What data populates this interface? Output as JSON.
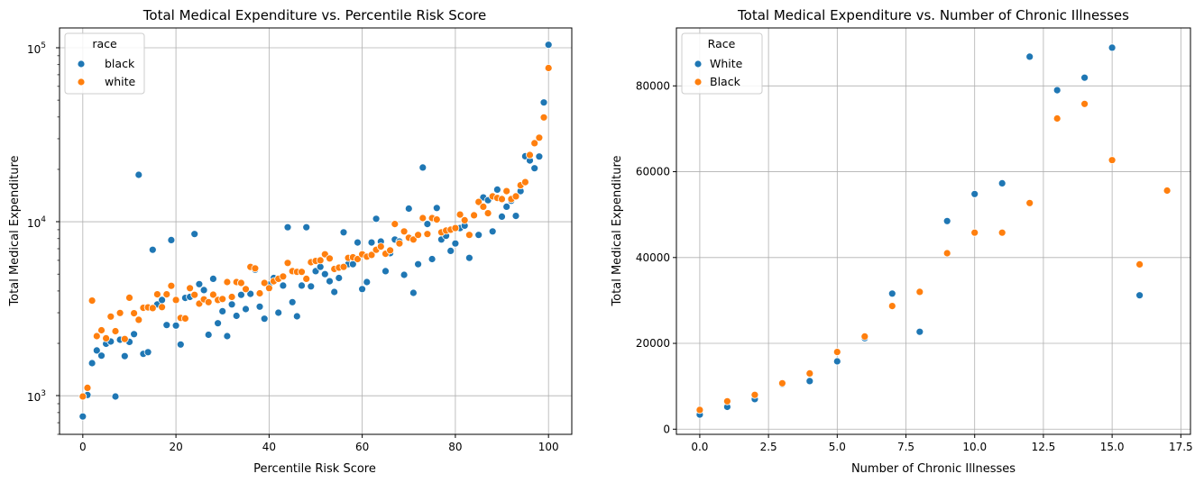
{
  "colors": {
    "blue": "#1f77b4",
    "orange": "#ff7f0e",
    "grid": "#b0b0b0"
  },
  "chart_data": [
    {
      "type": "scatter",
      "title": "Total Medical Expenditure vs. Percentile Risk Score",
      "xlabel": "Percentile Risk Score",
      "ylabel": "Total Medical Expenditure",
      "xlim": [
        -5,
        105
      ],
      "ylim": [
        600,
        130000
      ],
      "yscale": "log",
      "xticks": [
        0,
        20,
        40,
        60,
        80,
        100
      ],
      "xtick_labels": [
        "0",
        "20",
        "40",
        "60",
        "80",
        "100"
      ],
      "ytick_labels": [
        "10",
        "10",
        "10"
      ],
      "ytick_exponents": [
        "3",
        "4",
        "5"
      ],
      "grid": true,
      "legend": {
        "title": "race",
        "position": "top-left"
      },
      "series": [
        {
          "name": "black",
          "color": "#1f77b4",
          "points": [
            [
              0,
              760
            ],
            [
              1,
              1010
            ],
            [
              2,
              1540
            ],
            [
              3,
              1820
            ],
            [
              4,
              1700
            ],
            [
              5,
              1990
            ],
            [
              6,
              2050
            ],
            [
              7,
              990
            ],
            [
              8,
              2100
            ],
            [
              9,
              1690
            ],
            [
              10,
              2040
            ],
            [
              11,
              2260
            ],
            [
              12,
              18600
            ],
            [
              13,
              1740
            ],
            [
              14,
              1780
            ],
            [
              15,
              6900
            ],
            [
              16,
              3350
            ],
            [
              17,
              3550
            ],
            [
              18,
              2550
            ],
            [
              19,
              7850
            ],
            [
              20,
              2530
            ],
            [
              21,
              1970
            ],
            [
              22,
              3650
            ],
            [
              23,
              3700
            ],
            [
              24,
              8500
            ],
            [
              25,
              4380
            ],
            [
              26,
              4050
            ],
            [
              27,
              2240
            ],
            [
              28,
              4700
            ],
            [
              29,
              2610
            ],
            [
              30,
              3060
            ],
            [
              31,
              2200
            ],
            [
              32,
              3350
            ],
            [
              33,
              2880
            ],
            [
              34,
              3800
            ],
            [
              35,
              3150
            ],
            [
              36,
              3850
            ],
            [
              37,
              5300
            ],
            [
              38,
              3250
            ],
            [
              39,
              2770
            ],
            [
              40,
              4350
            ],
            [
              41,
              4750
            ],
            [
              42,
              3000
            ],
            [
              43,
              4300
            ],
            [
              44,
              9300
            ],
            [
              45,
              3450
            ],
            [
              46,
              2860
            ],
            [
              47,
              4300
            ],
            [
              48,
              9300
            ],
            [
              49,
              4250
            ],
            [
              50,
              5200
            ],
            [
              51,
              5500
            ],
            [
              52,
              5000
            ],
            [
              53,
              4550
            ],
            [
              54,
              3950
            ],
            [
              55,
              4750
            ],
            [
              56,
              8700
            ],
            [
              57,
              5700
            ],
            [
              58,
              5700
            ],
            [
              59,
              7600
            ],
            [
              60,
              4100
            ],
            [
              61,
              4500
            ],
            [
              62,
              7600
            ],
            [
              63,
              10400
            ],
            [
              64,
              7700
            ],
            [
              65,
              5200
            ],
            [
              66,
              6600
            ],
            [
              67,
              7900
            ],
            [
              68,
              7700
            ],
            [
              69,
              4950
            ],
            [
              70,
              11900
            ],
            [
              71,
              3900
            ],
            [
              72,
              5700
            ],
            [
              73,
              20500
            ],
            [
              74,
              9700
            ],
            [
              75,
              6100
            ],
            [
              76,
              12000
            ],
            [
              77,
              7900
            ],
            [
              78,
              8300
            ],
            [
              79,
              6800
            ],
            [
              80,
              7500
            ],
            [
              81,
              9200
            ],
            [
              82,
              9500
            ],
            [
              83,
              6200
            ],
            [
              84,
              10900
            ],
            [
              85,
              8400
            ],
            [
              86,
              13800
            ],
            [
              87,
              13300
            ],
            [
              88,
              8800
            ],
            [
              89,
              15300
            ],
            [
              90,
              10700
            ],
            [
              91,
              12200
            ],
            [
              92,
              13200
            ],
            [
              93,
              10800
            ],
            [
              94,
              15000
            ],
            [
              95,
              23800
            ],
            [
              96,
              22500
            ],
            [
              97,
              20300
            ],
            [
              98,
              23700
            ],
            [
              99,
              48500
            ],
            [
              100,
              104000
            ]
          ]
        },
        {
          "name": "white",
          "color": "#ff7f0e",
          "points": [
            [
              0,
              990
            ],
            [
              1,
              1110
            ],
            [
              2,
              3520
            ],
            [
              3,
              2200
            ],
            [
              4,
              2380
            ],
            [
              5,
              2140
            ],
            [
              6,
              2850
            ],
            [
              7,
              2350
            ],
            [
              8,
              2990
            ],
            [
              9,
              2120
            ],
            [
              10,
              3660
            ],
            [
              11,
              2980
            ],
            [
              12,
              2730
            ],
            [
              13,
              3200
            ],
            [
              14,
              3220
            ],
            [
              15,
              3190
            ],
            [
              16,
              3830
            ],
            [
              17,
              3230
            ],
            [
              18,
              3830
            ],
            [
              19,
              4280
            ],
            [
              20,
              3550
            ],
            [
              21,
              2800
            ],
            [
              22,
              2780
            ],
            [
              23,
              4150
            ],
            [
              24,
              3800
            ],
            [
              25,
              3380
            ],
            [
              26,
              3580
            ],
            [
              27,
              3450
            ],
            [
              28,
              3810
            ],
            [
              29,
              3550
            ],
            [
              30,
              3600
            ],
            [
              31,
              4500
            ],
            [
              32,
              3700
            ],
            [
              33,
              4500
            ],
            [
              34,
              4450
            ],
            [
              35,
              4100
            ],
            [
              36,
              5500
            ],
            [
              37,
              5400
            ],
            [
              38,
              3880
            ],
            [
              39,
              4450
            ],
            [
              40,
              4150
            ],
            [
              41,
              4550
            ],
            [
              42,
              4700
            ],
            [
              43,
              4850
            ],
            [
              44,
              5800
            ],
            [
              45,
              5200
            ],
            [
              46,
              5150
            ],
            [
              47,
              5150
            ],
            [
              48,
              4700
            ],
            [
              49,
              5850
            ],
            [
              50,
              5950
            ],
            [
              51,
              6000
            ],
            [
              52,
              6500
            ],
            [
              53,
              6150
            ],
            [
              54,
              5350
            ],
            [
              55,
              5450
            ],
            [
              56,
              5500
            ],
            [
              57,
              6200
            ],
            [
              58,
              6250
            ],
            [
              59,
              6100
            ],
            [
              60,
              6500
            ],
            [
              61,
              6300
            ],
            [
              62,
              6450
            ],
            [
              63,
              6900
            ],
            [
              64,
              7200
            ],
            [
              65,
              6550
            ],
            [
              66,
              6850
            ],
            [
              67,
              9700
            ],
            [
              68,
              7500
            ],
            [
              69,
              8800
            ],
            [
              70,
              8100
            ],
            [
              71,
              7900
            ],
            [
              72,
              8400
            ],
            [
              73,
              10500
            ],
            [
              74,
              8500
            ],
            [
              75,
              10500
            ],
            [
              76,
              10300
            ],
            [
              77,
              8700
            ],
            [
              78,
              8900
            ],
            [
              79,
              9000
            ],
            [
              80,
              9200
            ],
            [
              81,
              11000
            ],
            [
              82,
              10200
            ],
            [
              83,
              8400
            ],
            [
              84,
              10900
            ],
            [
              85,
              13000
            ],
            [
              86,
              12200
            ],
            [
              87,
              11200
            ],
            [
              88,
              14000
            ],
            [
              89,
              13700
            ],
            [
              90,
              13500
            ],
            [
              91,
              15000
            ],
            [
              92,
              13500
            ],
            [
              93,
              14000
            ],
            [
              94,
              16200
            ],
            [
              95,
              16900
            ],
            [
              96,
              24200
            ],
            [
              97,
              28300
            ],
            [
              98,
              30400
            ],
            [
              99,
              39800
            ],
            [
              100,
              76500
            ]
          ]
        }
      ]
    },
    {
      "type": "scatter",
      "title": "Total Medical Expenditure vs. Number of Chronic Illnesses",
      "xlabel": "Number of Chronic Illnesses",
      "ylabel": "Total Medical Expenditure",
      "xlim": [
        -0.85,
        17.85
      ],
      "ylim": [
        -1200,
        93500
      ],
      "yscale": "linear",
      "xticks": [
        0,
        2.5,
        5,
        7.5,
        10,
        12.5,
        15,
        17.5
      ],
      "xtick_labels": [
        "0.0",
        "2.5",
        "5.0",
        "7.5",
        "10.0",
        "12.5",
        "15.0",
        "17.5"
      ],
      "yticks": [
        0,
        20000,
        40000,
        60000,
        80000
      ],
      "ytick_labels": [
        "0",
        "20000",
        "40000",
        "60000",
        "80000"
      ],
      "grid": true,
      "legend": {
        "title": "Race",
        "position": "top-left"
      },
      "series": [
        {
          "name": "White",
          "color": "#1f77b4",
          "points": [
            [
              0,
              3400
            ],
            [
              1,
              5200
            ],
            [
              2,
              7000
            ],
            [
              3,
              10500
            ],
            [
              4,
              11200
            ],
            [
              5,
              15800
            ],
            [
              6,
              21200
            ],
            [
              7,
              31600
            ],
            [
              8,
              22700
            ],
            [
              9,
              48500
            ],
            [
              10,
              54800
            ],
            [
              11,
              57300
            ],
            [
              12,
              86800
            ],
            [
              13,
              79000
            ],
            [
              14,
              81900
            ],
            [
              15,
              88900
            ],
            [
              16,
              31200
            ]
          ]
        },
        {
          "name": "Black",
          "color": "#ff7f0e",
          "points": [
            [
              0,
              4500
            ],
            [
              1,
              6500
            ],
            [
              2,
              8000
            ],
            [
              3,
              10700
            ],
            [
              4,
              13000
            ],
            [
              5,
              18000
            ],
            [
              6,
              21600
            ],
            [
              7,
              28700
            ],
            [
              8,
              32000
            ],
            [
              9,
              41000
            ],
            [
              10,
              45800
            ],
            [
              11,
              45800
            ],
            [
              12,
              52700
            ],
            [
              13,
              72400
            ],
            [
              14,
              75800
            ],
            [
              15,
              62700
            ],
            [
              16,
              38400
            ],
            [
              17,
              55600
            ]
          ]
        }
      ]
    }
  ]
}
